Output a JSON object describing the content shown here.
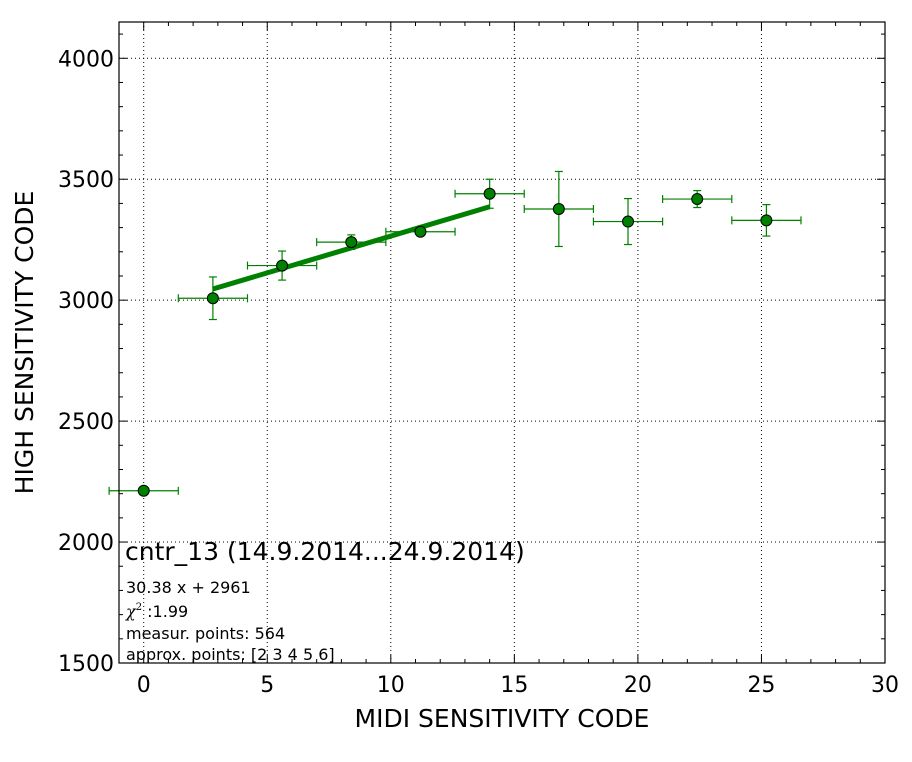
{
  "chart_data": {
    "type": "scatter",
    "title": "",
    "xlabel": "MIDI SENSITIVITY CODE",
    "ylabel": "HIGH SENSITIVITY CODE",
    "xlim": [
      -1,
      30
    ],
    "ylim": [
      1500,
      4150
    ],
    "xticks": [
      0,
      5,
      10,
      15,
      20,
      25,
      30
    ],
    "yticks": [
      1500,
      2000,
      2500,
      3000,
      3500,
      4000
    ],
    "grid": true,
    "color": "#008000",
    "points": [
      {
        "x": 0.0,
        "y": 2212,
        "xerr": 1.4,
        "yerr": 0
      },
      {
        "x": 2.8,
        "y": 3008,
        "xerr": 1.4,
        "yerr": 88
      },
      {
        "x": 5.6,
        "y": 3143,
        "xerr": 1.4,
        "yerr": 60
      },
      {
        "x": 8.4,
        "y": 3240,
        "xerr": 1.4,
        "yerr": 30
      },
      {
        "x": 11.2,
        "y": 3283,
        "xerr": 1.4,
        "yerr": 15
      },
      {
        "x": 14.0,
        "y": 3440,
        "xerr": 1.4,
        "yerr": 60
      },
      {
        "x": 16.8,
        "y": 3377,
        "xerr": 1.4,
        "yerr": 155
      },
      {
        "x": 19.6,
        "y": 3325,
        "xerr": 1.4,
        "yerr": 95
      },
      {
        "x": 22.4,
        "y": 3418,
        "xerr": 1.4,
        "yerr": 35
      },
      {
        "x": 25.2,
        "y": 3330,
        "xerr": 1.4,
        "yerr": 65
      }
    ],
    "fit": {
      "slope": 30.38,
      "intercept": 2961,
      "x_range": [
        2.8,
        14.0
      ]
    },
    "annotations": {
      "title": "cntr_13 (14.9.2014...24.9.2014)",
      "equation": "30.38 x + 2961",
      "chi_symbol": "χ",
      "chi_sup": "2",
      "chi_value": " :1.99",
      "measur_points": "measur. points: 564",
      "approx_points": "approx. points: [2 3 4 5 6]"
    }
  }
}
